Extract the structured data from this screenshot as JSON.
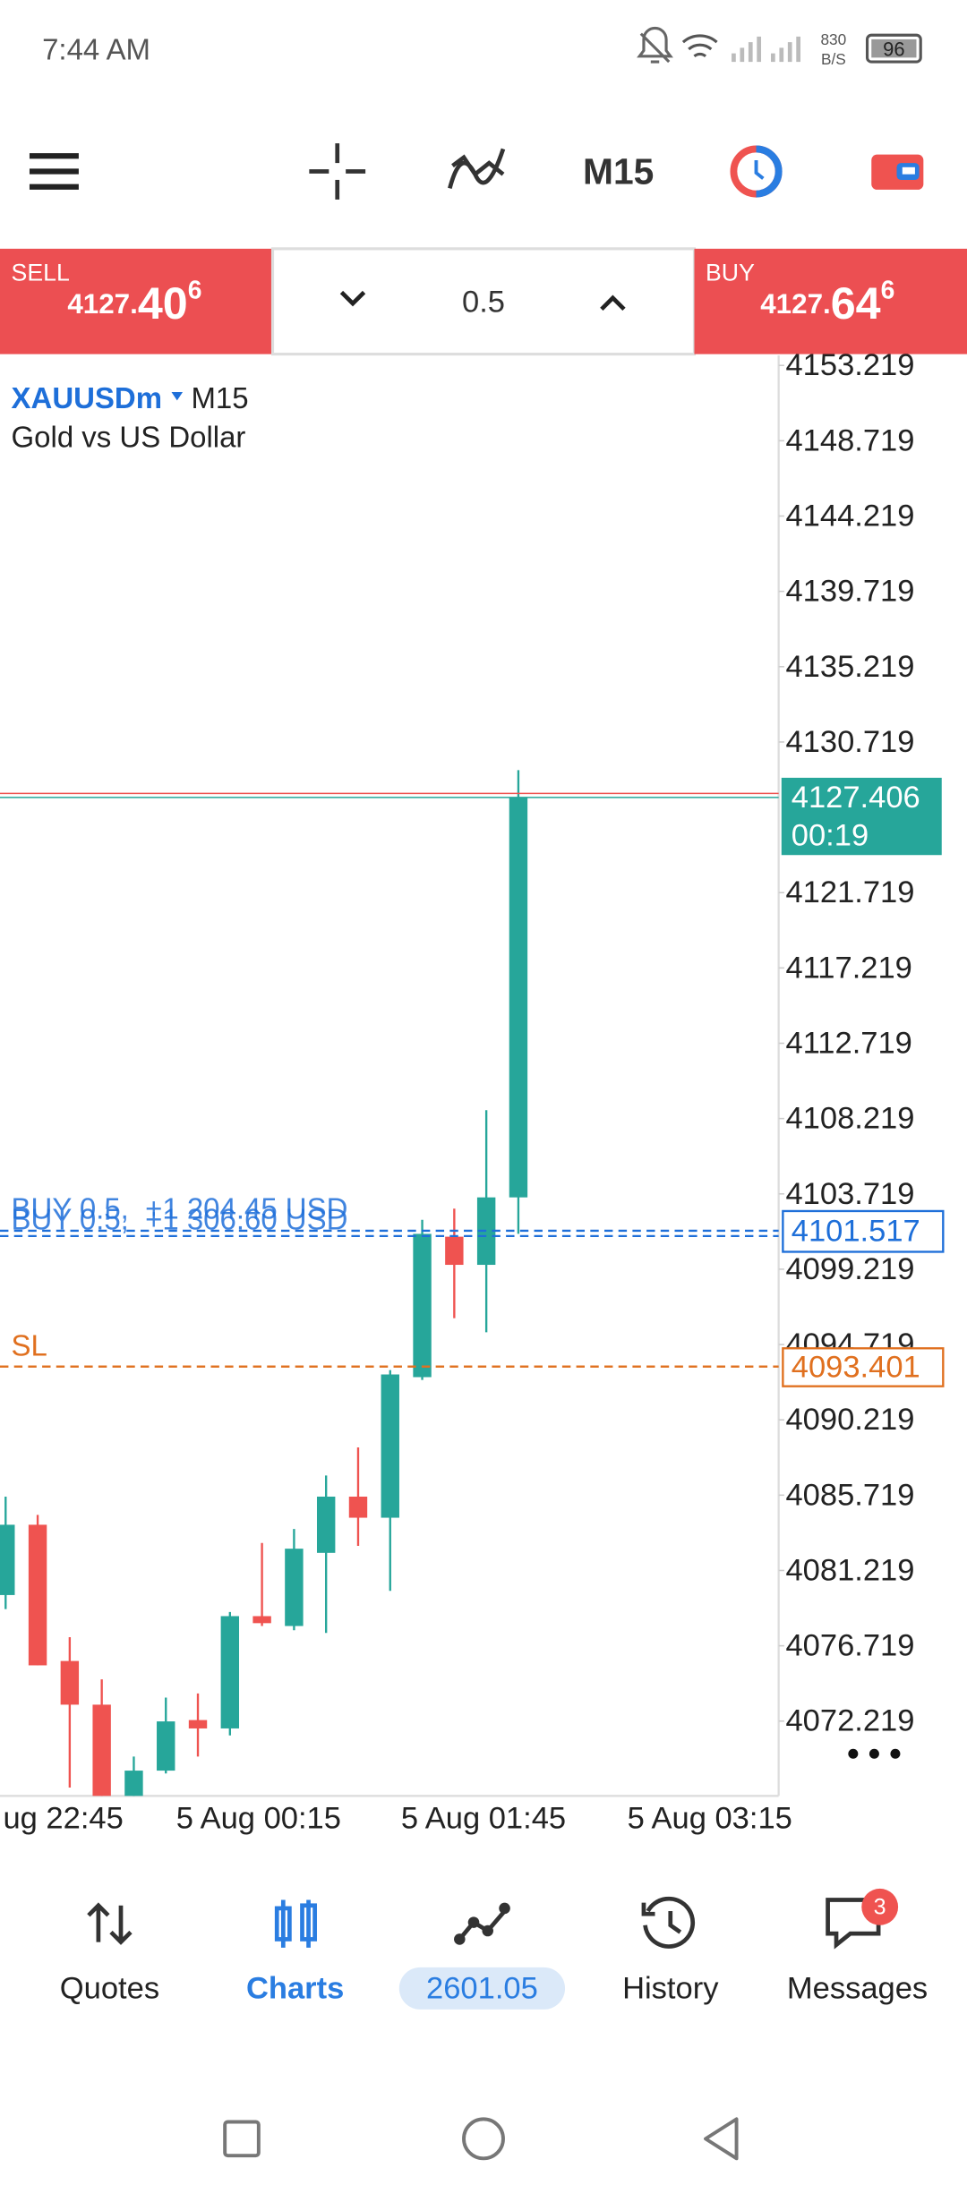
{
  "status_bar": {
    "time": "7:44 AM",
    "speed": "830",
    "speed_unit": "B/S",
    "battery": "96"
  },
  "toolbar": {
    "timeframe": "M15"
  },
  "trade_panel": {
    "sell": {
      "label": "SELL",
      "price_prefix": "4127.",
      "price_big": "40",
      "price_sup": "6"
    },
    "volume": "0.5",
    "buy": {
      "label": "BUY",
      "price_prefix": "4127.",
      "price_big": "64",
      "price_sup": "6"
    }
  },
  "chart_data": {
    "type": "candlestick",
    "symbol": "XAUUSDm",
    "timeframe": "M15",
    "description": "Gold vs US Dollar",
    "colors": {
      "up": "#26a69a",
      "down": "#ef5350"
    },
    "candles": [
      {
        "open": 4079.75,
        "high": 4085.63,
        "low": 4078.91,
        "close": 4083.95
      },
      {
        "open": 4083.95,
        "high": 4084.54,
        "low": 4075.55,
        "close": 4075.55
      },
      {
        "open": 4075.81,
        "high": 4077.23,
        "low": 4068.25,
        "close": 4073.2
      },
      {
        "open": 4073.2,
        "high": 4074.71,
        "low": 4067.75,
        "close": 4067.75
      },
      {
        "open": 4067.75,
        "high": 4070.1,
        "low": 4067.75,
        "close": 4069.26
      },
      {
        "open": 4069.26,
        "high": 4073.62,
        "low": 4069.09,
        "close": 4072.2
      },
      {
        "open": 4072.28,
        "high": 4073.87,
        "low": 4070.1,
        "close": 4071.78
      },
      {
        "open": 4071.78,
        "high": 4078.74,
        "low": 4071.36,
        "close": 4078.49
      },
      {
        "open": 4078.49,
        "high": 4082.86,
        "low": 4077.9,
        "close": 4078.07
      },
      {
        "open": 4077.9,
        "high": 4083.7,
        "low": 4077.65,
        "close": 4082.52
      },
      {
        "open": 4082.27,
        "high": 4086.89,
        "low": 4077.49,
        "close": 4085.63
      },
      {
        "open": 4085.63,
        "high": 4088.57,
        "low": 4082.69,
        "close": 4084.37
      },
      {
        "open": 4084.37,
        "high": 4093.19,
        "low": 4080.0,
        "close": 4092.93
      },
      {
        "open": 4092.77,
        "high": 4102.17,
        "low": 4092.6,
        "close": 4101.33
      },
      {
        "open": 4101.16,
        "high": 4102.84,
        "low": 4096.29,
        "close": 4099.48
      },
      {
        "open": 4099.48,
        "high": 4108.72,
        "low": 4095.45,
        "close": 4103.51
      },
      {
        "open": 4103.51,
        "high": 4129.04,
        "low": 4101.33,
        "close": 4127.406
      }
    ],
    "ylim": [
      4067.75,
      4153.81
    ],
    "yticks": [
      4153.219,
      4148.719,
      4144.219,
      4139.719,
      4135.219,
      4130.719,
      4121.719,
      4117.219,
      4112.719,
      4108.219,
      4103.719,
      4099.219,
      4094.719,
      4090.219,
      4085.719,
      4081.219,
      4076.719,
      4072.219
    ],
    "x_labels": [
      "ug 22:45",
      "5 Aug 00:15",
      "5 Aug 01:45",
      "5 Aug 03:15"
    ],
    "ask": {
      "value": 4127.646,
      "color": "#ef5350"
    },
    "bid": {
      "value": 4127.406,
      "timer": "00:19",
      "color": "#26a69a"
    },
    "positions": [
      {
        "text": "BUY 0.5,  +1 204.45 USD",
        "value": 4101.517,
        "color": "#1e6fd9",
        "labeled": true
      },
      {
        "text": "BUY 0.5,  +1 306.60 USD",
        "value": 4101.2,
        "color": "#1e6fd9",
        "labeled": false
      }
    ],
    "stop_loss": {
      "label": "SL",
      "value": 4093.401,
      "color": "#e0701f"
    }
  },
  "bottom_nav": [
    {
      "label": "Quotes"
    },
    {
      "label": "Charts"
    },
    {
      "label": "2601.05"
    },
    {
      "label": "History"
    },
    {
      "label": "Messages",
      "badge": "3"
    }
  ]
}
